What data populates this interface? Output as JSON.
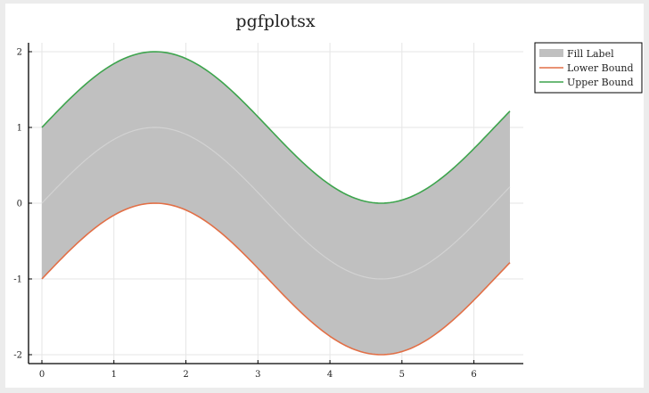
{
  "chart_data": {
    "type": "area",
    "title": "pgfplotsx",
    "xlabel": "",
    "ylabel": "",
    "xlim": [
      0,
      6.5
    ],
    "ylim": [
      -2,
      2
    ],
    "xticks": [
      0,
      1,
      2,
      3,
      4,
      5,
      6
    ],
    "yticks": [
      -2,
      -1,
      0,
      1,
      2
    ],
    "grid": true,
    "legend_position": "top-right (outside)",
    "x": [
      0,
      0.25,
      0.5,
      0.75,
      1.0,
      1.25,
      1.5,
      1.75,
      2.0,
      2.25,
      2.5,
      2.75,
      3.0,
      3.25,
      3.5,
      3.75,
      4.0,
      4.25,
      4.5,
      4.75,
      5.0,
      5.25,
      5.5,
      5.75,
      6.0,
      6.25,
      6.5
    ],
    "series": [
      {
        "name": "Fill Label",
        "kind": "fill_between",
        "color": "#c0c0c0",
        "center": [
          0.0,
          0.247,
          0.479,
          0.682,
          0.841,
          0.949,
          0.997,
          0.984,
          0.909,
          0.778,
          0.598,
          0.382,
          0.141,
          -0.108,
          -0.351,
          -0.572,
          -0.757,
          -0.895,
          -0.978,
          -0.999,
          -0.959,
          -0.859,
          -0.706,
          -0.508,
          -0.279,
          -0.033,
          0.215
        ]
      },
      {
        "name": "Lower Bound",
        "kind": "line",
        "color": "#e26f46",
        "values": [
          -1.0,
          -0.753,
          -0.521,
          -0.318,
          -0.159,
          -0.051,
          -0.003,
          -0.016,
          -0.091,
          -0.222,
          -0.402,
          -0.618,
          -0.859,
          -1.108,
          -1.351,
          -1.572,
          -1.757,
          -1.895,
          -1.978,
          -1.999,
          -1.959,
          -1.859,
          -1.706,
          -1.508,
          -1.279,
          -1.033,
          -0.785
        ]
      },
      {
        "name": "Upper Bound",
        "kind": "line",
        "color": "#3da44d",
        "values": [
          1.0,
          1.247,
          1.479,
          1.682,
          1.841,
          1.949,
          1.997,
          1.984,
          1.909,
          1.778,
          1.598,
          1.382,
          1.141,
          0.892,
          0.649,
          0.428,
          0.243,
          0.105,
          0.022,
          0.001,
          0.041,
          0.141,
          0.294,
          0.492,
          0.721,
          0.967,
          1.215
        ]
      }
    ]
  }
}
